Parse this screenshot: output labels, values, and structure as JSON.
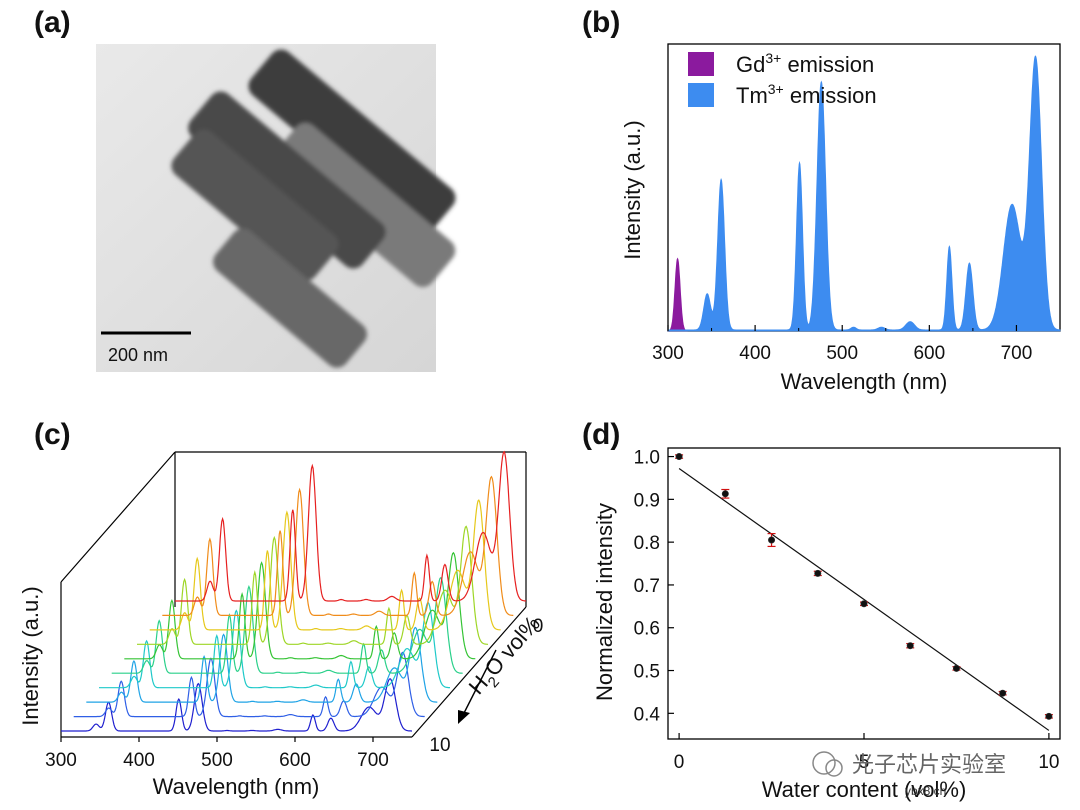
{
  "panels": {
    "a": {
      "label": "(a)",
      "scale_bar": "200 nm"
    },
    "b": {
      "label": "(b)"
    },
    "c": {
      "label": "(c)"
    },
    "d": {
      "label": "(d)"
    }
  },
  "watermark": {
    "text": "光子芯片实验室",
    "site": "ybx8.cn"
  },
  "chart_data": [
    {
      "panel": "b",
      "type": "area",
      "xlabel": "Wavelength (nm)",
      "ylabel": "Intensity (a.u.)",
      "xlim": [
        300,
        750
      ],
      "xticks": [
        "300",
        "400",
        "500",
        "600",
        "700"
      ],
      "legend_position": "top-left",
      "legend": [
        {
          "base": "Gd",
          "sup": "3+",
          "rest": " emission",
          "color": "#8b1a9e"
        },
        {
          "base": "Tm",
          "sup": "3+",
          "rest": " emission",
          "color": "#3d8cf0"
        }
      ],
      "series": [
        {
          "name": "Gd3+ emission",
          "color": "#8b1a9e",
          "peaks": [
            {
              "x": 311,
              "height": 0.26,
              "width": 3
            }
          ]
        },
        {
          "name": "Tm3+ emission",
          "color": "#3d8cf0",
          "peaks": [
            {
              "x": 345,
              "height": 0.13,
              "width": 4
            },
            {
              "x": 361,
              "height": 0.54,
              "width": 4
            },
            {
              "x": 451,
              "height": 0.6,
              "width": 3.5
            },
            {
              "x": 476,
              "height": 0.89,
              "width": 5
            },
            {
              "x": 513,
              "height": 0.01,
              "width": 3
            },
            {
              "x": 545,
              "height": 0.01,
              "width": 4
            },
            {
              "x": 578,
              "height": 0.03,
              "width": 5
            },
            {
              "x": 623,
              "height": 0.3,
              "width": 3
            },
            {
              "x": 646,
              "height": 0.24,
              "width": 4
            },
            {
              "x": 695,
              "height": 0.45,
              "width": 10
            },
            {
              "x": 722,
              "height": 0.97,
              "width": 7
            }
          ]
        }
      ]
    },
    {
      "panel": "c",
      "type": "line",
      "xlabel": "Wavelength (nm)",
      "ylabel": "Intensity (a.u.)",
      "zlabel_base": "H",
      "zlabel_sub": "2",
      "zlabel_rest": "O vol%",
      "xlim": [
        300,
        750
      ],
      "xticks": [
        "300",
        "400",
        "500",
        "600",
        "700"
      ],
      "zticks": [
        "0",
        "10"
      ],
      "series": [
        {
          "water": 10,
          "color": "#1f1fcf",
          "scale": 0.35
        },
        {
          "water": 8.75,
          "color": "#2f5fe6",
          "scale": 0.43
        },
        {
          "water": 7.5,
          "color": "#1fa3e6",
          "scale": 0.5
        },
        {
          "water": 6.25,
          "color": "#1fc9c9",
          "scale": 0.57
        },
        {
          "water": 5,
          "color": "#2ad08a",
          "scale": 0.64
        },
        {
          "water": 3.75,
          "color": "#35c435",
          "scale": 0.71
        },
        {
          "water": 2.5,
          "color": "#9ed626",
          "scale": 0.79
        },
        {
          "water": 1.25,
          "color": "#e6c81a",
          "scale": 0.87
        },
        {
          "water": 0.6,
          "color": "#f08c1a",
          "scale": 0.93
        },
        {
          "water": 0,
          "color": "#e62020",
          "scale": 1.0
        }
      ]
    },
    {
      "panel": "d",
      "type": "scatter",
      "xlabel": "Water content (vol%)",
      "ylabel": "Normalized intensity",
      "xlim": [
        -0.3,
        10.3
      ],
      "ylim": [
        0.34,
        1.02
      ],
      "xticks": [
        "0",
        "5",
        "10"
      ],
      "yticks": [
        "0.4",
        "0.5",
        "0.6",
        "0.7",
        "0.8",
        "0.9",
        "1.0"
      ],
      "points": [
        {
          "x": 0,
          "y": 1.0,
          "err": 0.004
        },
        {
          "x": 1.25,
          "y": 0.913,
          "err": 0.01
        },
        {
          "x": 2.5,
          "y": 0.805,
          "err": 0.015
        },
        {
          "x": 3.75,
          "y": 0.727,
          "err": 0.005
        },
        {
          "x": 5,
          "y": 0.656,
          "err": 0.004
        },
        {
          "x": 6.25,
          "y": 0.558,
          "err": 0.005
        },
        {
          "x": 7.5,
          "y": 0.505,
          "err": 0.004
        },
        {
          "x": 8.75,
          "y": 0.447,
          "err": 0.004
        },
        {
          "x": 10,
          "y": 0.393,
          "err": 0.004
        }
      ],
      "fit": {
        "x": [
          0,
          10
        ],
        "y": [
          0.972,
          0.36
        ]
      }
    }
  ]
}
